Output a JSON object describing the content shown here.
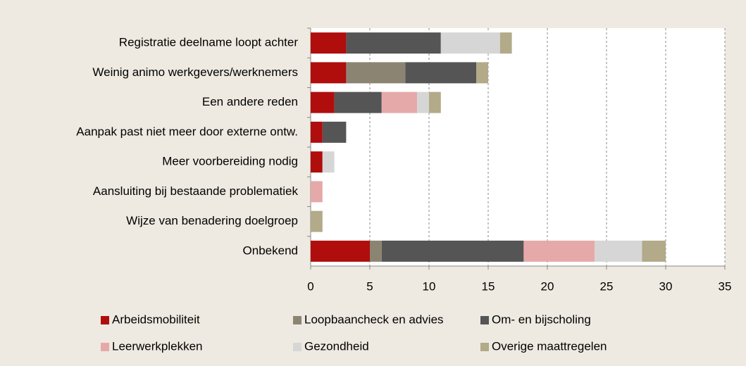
{
  "chart_data": {
    "type": "stacked-bar-horizontal",
    "categories": [
      "Registratie deelname loopt achter",
      "Weinig animo werkgevers/werknemers",
      "Een andere reden",
      "Aanpak past niet meer door externe ontw.",
      "Meer voorbereiding nodig",
      "Aansluiting bij bestaande problematiek",
      "Wijze van benadering doelgroep",
      "Onbekend"
    ],
    "series": [
      {
        "name": "Arbeidsmobiliteit",
        "color": "#b00d0d",
        "values": [
          3,
          3,
          2,
          1,
          1,
          0,
          0,
          5
        ]
      },
      {
        "name": "Loopbaancheck en advies",
        "color": "#8c8472",
        "values": [
          0,
          5,
          0,
          0,
          0,
          0,
          0,
          1
        ]
      },
      {
        "name": "Om- en bijscholing",
        "color": "#555555",
        "values": [
          8,
          6,
          4,
          2,
          0,
          0,
          0,
          12
        ]
      },
      {
        "name": "Leerwerkplekken",
        "color": "#e6a9a9",
        "values": [
          0,
          0,
          3,
          0,
          0,
          1,
          0,
          6
        ]
      },
      {
        "name": "Gezondheid",
        "color": "#d6d6d6",
        "values": [
          5,
          0,
          1,
          0,
          1,
          0,
          0,
          4
        ]
      },
      {
        "name": "Overige maattregelen",
        "color": "#b2aa88",
        "values": [
          1,
          1,
          1,
          0,
          0,
          0,
          1,
          2
        ]
      }
    ],
    "xlim": [
      0,
      35
    ],
    "xticks": [
      0,
      5,
      10,
      15,
      20,
      25,
      30,
      35
    ],
    "grid": true,
    "legend": "bottom"
  }
}
